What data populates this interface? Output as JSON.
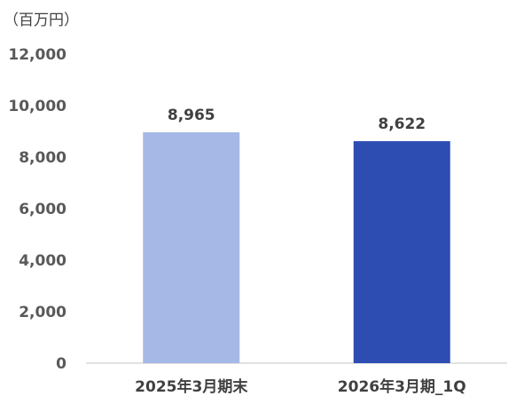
{
  "chart_data": {
    "type": "bar",
    "unit_label": "（百万円）",
    "categories": [
      "2025年3月期末",
      "2026年3月期_1Q"
    ],
    "values": [
      8965,
      8622
    ],
    "data_labels": [
      "8,965",
      "8,622"
    ],
    "bar_colors": [
      "#A6B8E6",
      "#2E4DB3"
    ],
    "ylim": [
      0,
      12000
    ],
    "yticks": [
      0,
      2000,
      4000,
      6000,
      8000,
      10000,
      12000
    ],
    "ytick_labels": [
      "0",
      "2,000",
      "4,000",
      "6,000",
      "8,000",
      "10,000",
      "12,000"
    ],
    "grid": false,
    "legend": "none",
    "title": "",
    "xlabel": "",
    "ylabel": ""
  }
}
